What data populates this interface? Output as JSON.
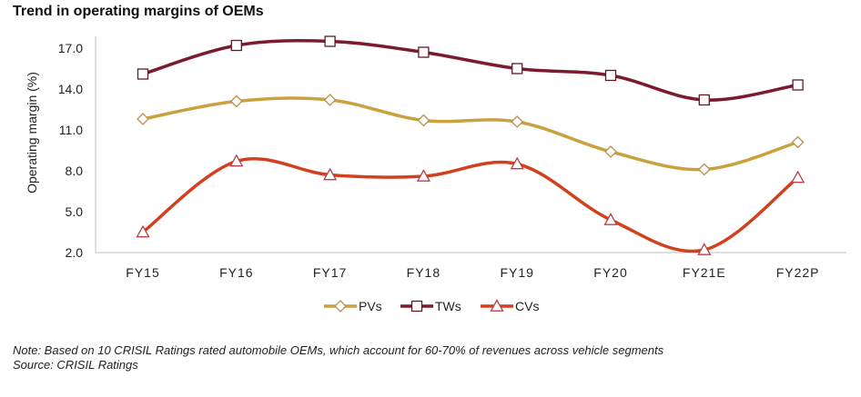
{
  "title": "Trend in operating margins of OEMs",
  "chart_data": {
    "type": "line",
    "title": "Trend in operating margins of OEMs",
    "xlabel": "",
    "ylabel": "Operating margin (%)",
    "ylim": [
      2.0,
      17.0
    ],
    "yticks": [
      "17.0",
      "14.0",
      "11.0",
      "8.0",
      "5.0",
      "2.0"
    ],
    "ytick_values": [
      17,
      14,
      11,
      8,
      5,
      2
    ],
    "categories": [
      "FY15",
      "FY16",
      "FY17",
      "FY18",
      "FY19",
      "FY20",
      "FY21E",
      "FY22P"
    ],
    "grid": false,
    "smooth": true,
    "legend_position": "bottom-center",
    "series": [
      {
        "name": "PVs",
        "color": "#C9A13F",
        "marker": "diamond",
        "values": [
          11.8,
          13.1,
          13.2,
          11.7,
          11.6,
          9.4,
          8.1,
          10.1
        ]
      },
      {
        "name": "TWs",
        "color": "#7A1C2E",
        "marker": "square",
        "values": [
          15.1,
          17.2,
          17.5,
          16.7,
          15.5,
          15.0,
          13.2,
          14.3
        ]
      },
      {
        "name": "CVs",
        "color": "#D2401E",
        "marker": "triangle",
        "values": [
          3.5,
          8.7,
          7.7,
          7.6,
          8.5,
          4.4,
          2.2,
          7.5
        ]
      }
    ]
  },
  "footer": {
    "note": "Note: Based on 10 CRISIL Ratings rated automobile OEMs, which account for 60-70% of revenues across vehicle segments",
    "source": "Source: CRISIL Ratings"
  }
}
